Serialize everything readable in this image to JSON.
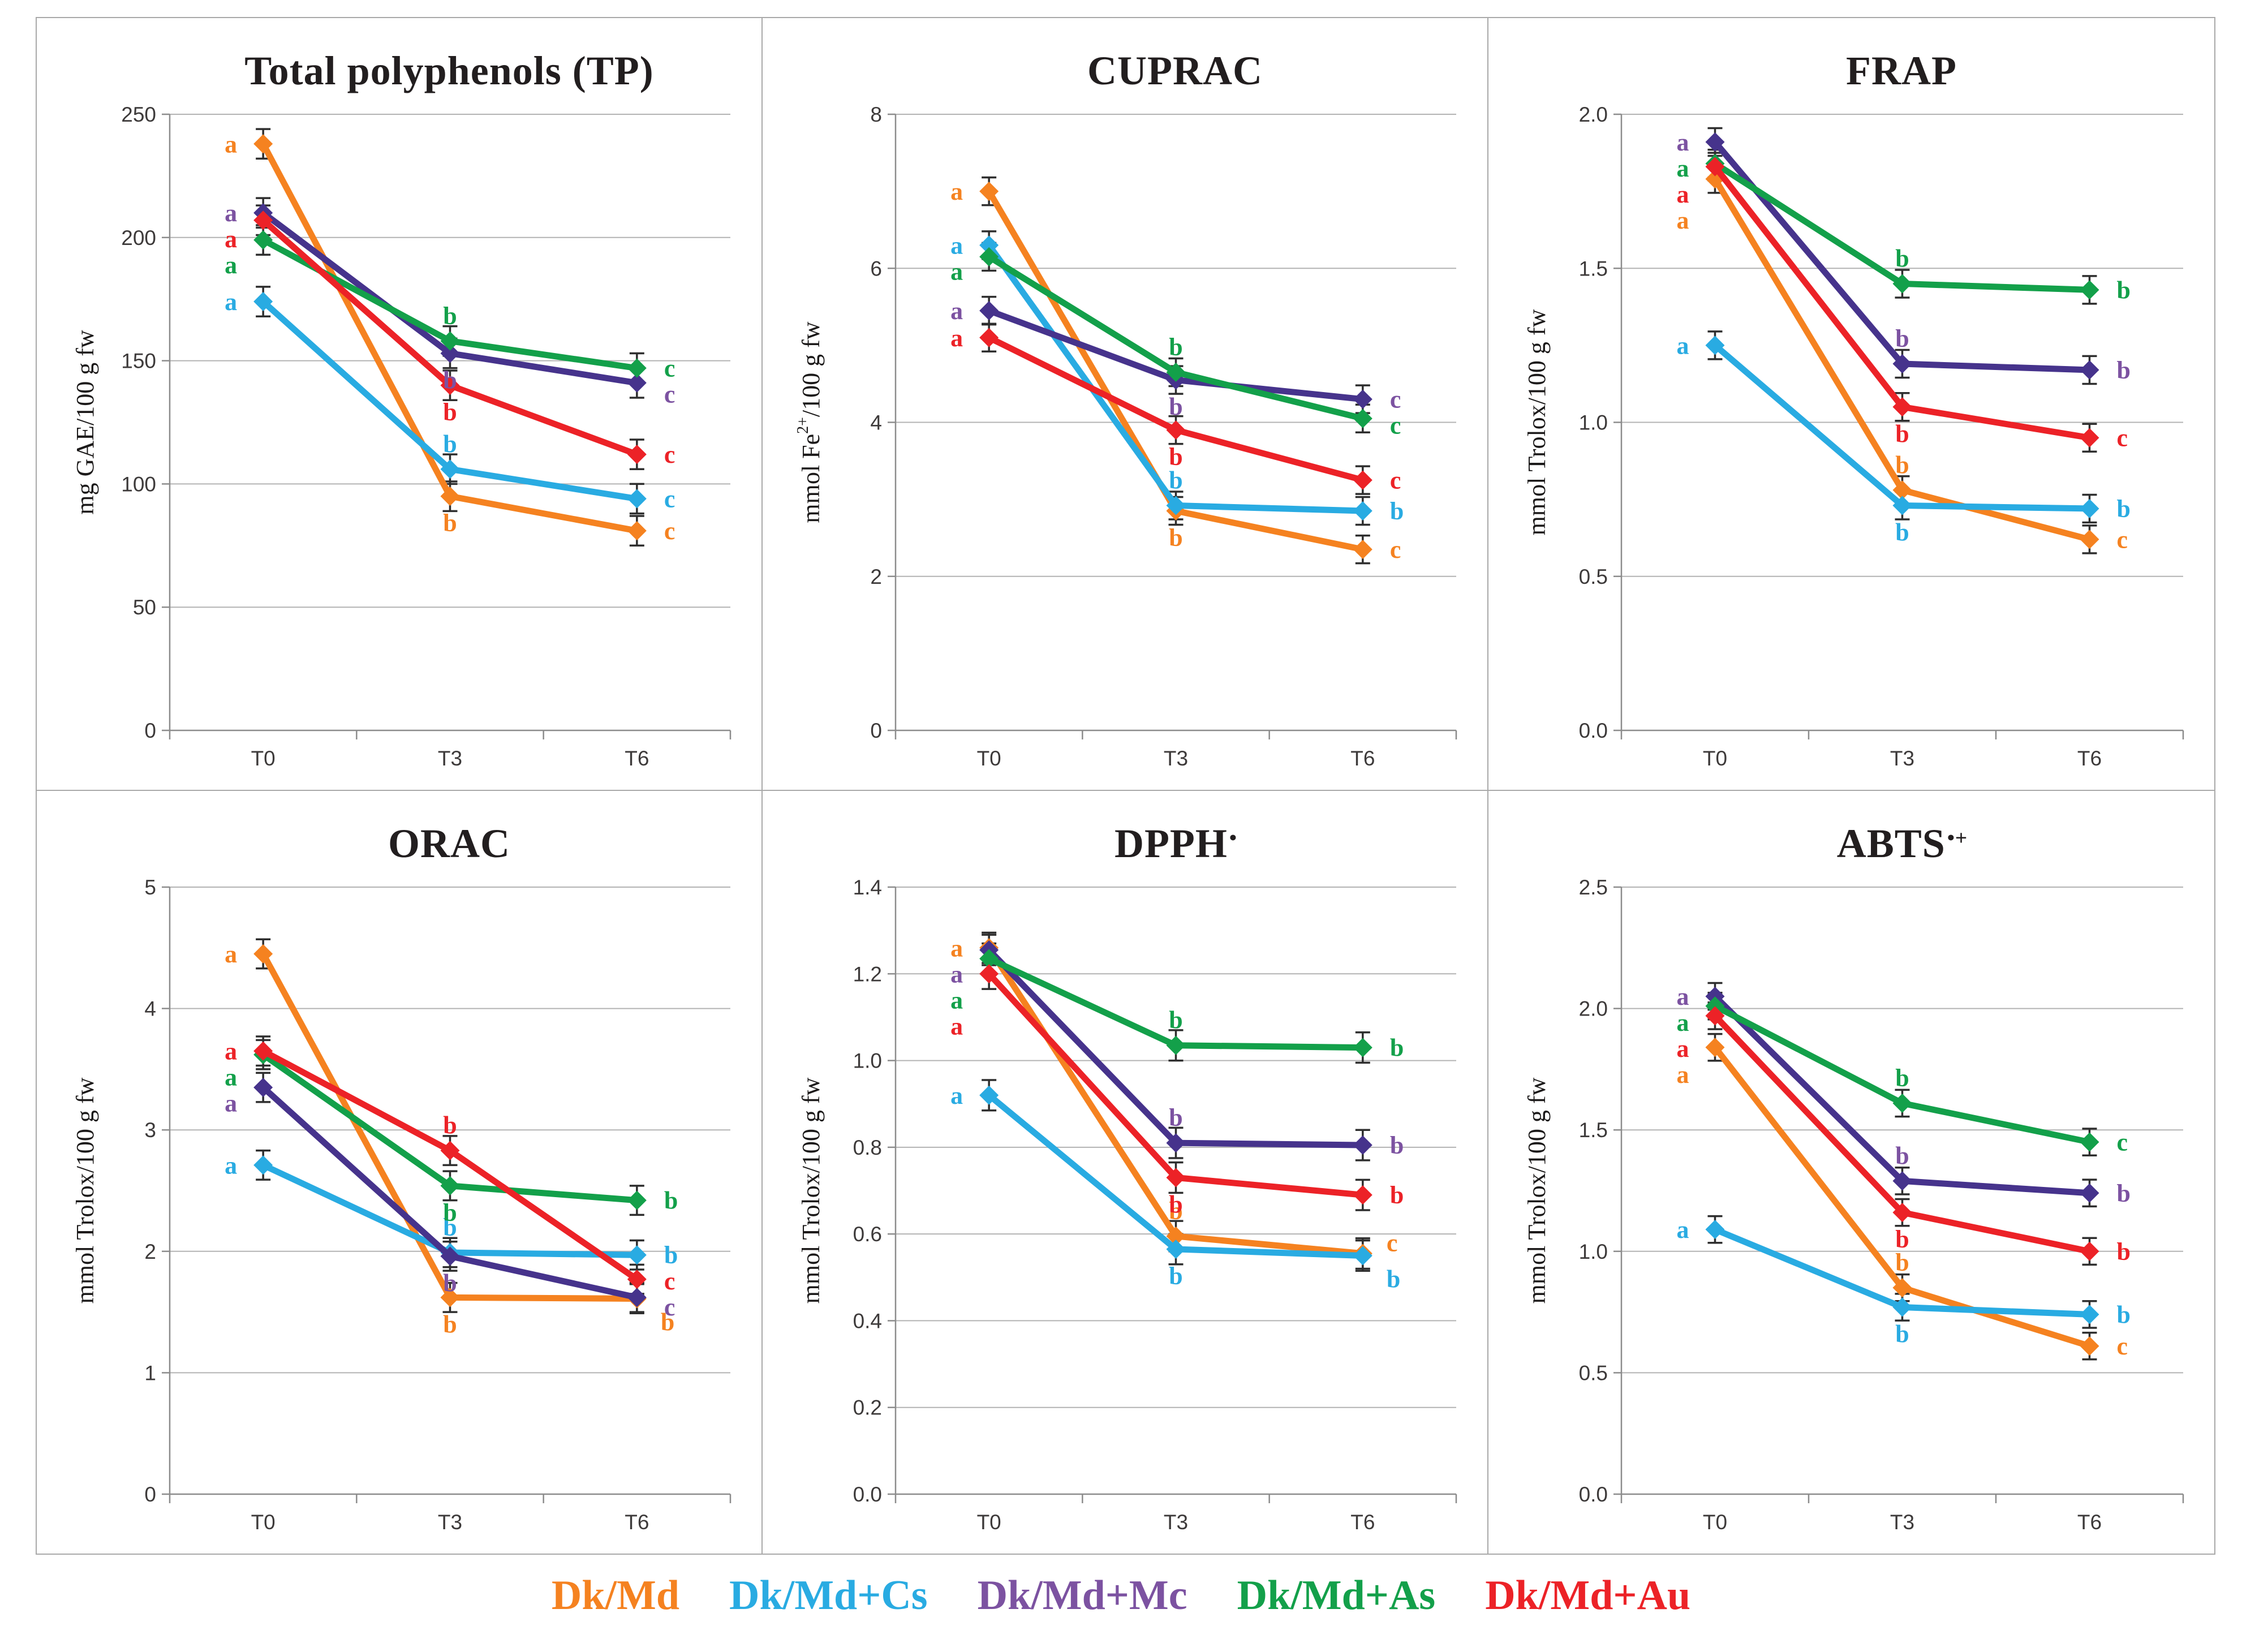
{
  "legend": {
    "items": [
      {
        "label": "Dk/Md",
        "color": "#F58220"
      },
      {
        "label": "Dk/Md+Cs",
        "color": "#29ABE2"
      },
      {
        "label": "Dk/Md+Mc",
        "color": "#7C52A1"
      },
      {
        "label": "Dk/Md+As",
        "color": "#13A04A"
      },
      {
        "label": "Dk/Md+Au",
        "color": "#EC2227"
      }
    ]
  },
  "chart_data": [
    {
      "type": "line",
      "title": "Total polyphenols (TP)",
      "title_sup": "",
      "ylabel_parts": [
        {
          "t": "mg GAE/100 g fw"
        }
      ],
      "categories": [
        "T0",
        "T3",
        "T6"
      ],
      "ylim": [
        0,
        250
      ],
      "yticks": [
        "0",
        "50",
        "100",
        "150",
        "200",
        "250"
      ],
      "grid": "horizontal",
      "legend_position": "bottom-shared",
      "error_bar": 6,
      "series": [
        {
          "name": "Dk/Md",
          "color": "#F58220",
          "values": [
            238,
            95,
            81
          ],
          "letters": [
            "a",
            "b",
            "c"
          ],
          "letter_sides": [
            "left",
            "below",
            "right"
          ]
        },
        {
          "name": "Dk/Md+Cs",
          "color": "#29ABE2",
          "values": [
            174,
            106,
            94
          ],
          "letters": [
            "a",
            "b",
            "c"
          ],
          "letter_sides": [
            "left",
            "above",
            "right"
          ]
        },
        {
          "name": "Dk/Md+Mc",
          "color": "#46338C",
          "letter_color": "#7C52A1",
          "values": [
            210,
            153,
            141
          ],
          "letters": [
            "a",
            "b",
            "c"
          ],
          "letter_sides": [
            "left",
            "below",
            "right"
          ]
        },
        {
          "name": "Dk/Md+As",
          "color": "#13A04A",
          "values": [
            199,
            158,
            147
          ],
          "letters": [
            "a",
            "b",
            "c"
          ],
          "letter_sides": [
            "left",
            "above",
            "right"
          ]
        },
        {
          "name": "Dk/Md+Au",
          "color": "#EC2227",
          "values": [
            207,
            140,
            112
          ],
          "letters": [
            "a",
            "b",
            "c"
          ],
          "letter_sides": [
            "left",
            "below",
            "right"
          ]
        }
      ]
    },
    {
      "type": "line",
      "title": "CUPRAC",
      "title_sup": "",
      "ylabel_parts": [
        {
          "t": "mmol Fe"
        },
        {
          "t": "2+",
          "sup": true
        },
        {
          "t": "/100 g fw"
        }
      ],
      "categories": [
        "T0",
        "T3",
        "T6"
      ],
      "ylim": [
        0,
        8
      ],
      "yticks": [
        "0",
        "2",
        "4",
        "6",
        "8"
      ],
      "grid": "horizontal",
      "error_bar": 0.18,
      "series": [
        {
          "name": "Dk/Md",
          "color": "#F58220",
          "values": [
            7.0,
            2.85,
            2.35
          ],
          "letters": [
            "a",
            "b",
            "c"
          ],
          "letter_sides": [
            "left",
            "below",
            "right"
          ]
        },
        {
          "name": "Dk/Md+Cs",
          "color": "#29ABE2",
          "values": [
            6.3,
            2.92,
            2.85
          ],
          "letters": [
            "a",
            "b",
            "b"
          ],
          "letter_sides": [
            "left",
            "above",
            "right"
          ]
        },
        {
          "name": "Dk/Md+Mc",
          "color": "#46338C",
          "letter_color": "#7C52A1",
          "values": [
            5.45,
            4.55,
            4.3
          ],
          "letters": [
            "a",
            "b",
            "c"
          ],
          "letter_sides": [
            "left",
            "below",
            "right"
          ]
        },
        {
          "name": "Dk/Md+As",
          "color": "#13A04A",
          "values": [
            6.15,
            4.65,
            4.05
          ],
          "letters": [
            "a",
            "b",
            "c"
          ],
          "letter_sides": [
            "left",
            "above",
            "right"
          ]
        },
        {
          "name": "Dk/Md+Au",
          "color": "#EC2227",
          "values": [
            5.1,
            3.9,
            3.25
          ],
          "letters": [
            "a",
            "b",
            "c"
          ],
          "letter_sides": [
            "left",
            "below",
            "right"
          ]
        }
      ]
    },
    {
      "type": "line",
      "title": "FRAP",
      "title_sup": "",
      "ylabel_parts": [
        {
          "t": "mmol Trolox/100 g fw"
        }
      ],
      "categories": [
        "T0",
        "T3",
        "T6"
      ],
      "ylim": [
        0,
        2.0
      ],
      "yticks": [
        "0.0",
        "0.5",
        "1.0",
        "1.5",
        "2.0"
      ],
      "grid": "horizontal",
      "error_bar": 0.045,
      "series": [
        {
          "name": "Dk/Md",
          "color": "#F58220",
          "values": [
            1.79,
            0.78,
            0.62
          ],
          "letters": [
            "a",
            "b",
            "c"
          ],
          "letter_sides": [
            "left",
            "above",
            "right"
          ]
        },
        {
          "name": "Dk/Md+Cs",
          "color": "#29ABE2",
          "values": [
            1.25,
            0.73,
            0.72
          ],
          "letters": [
            "a",
            "b",
            "b"
          ],
          "letter_sides": [
            "left",
            "below",
            "right"
          ]
        },
        {
          "name": "Dk/Md+Mc",
          "color": "#46338C",
          "letter_color": "#7C52A1",
          "values": [
            1.91,
            1.19,
            1.17
          ],
          "letters": [
            "a",
            "b",
            "b"
          ],
          "letter_sides": [
            "left",
            "above",
            "right"
          ]
        },
        {
          "name": "Dk/Md+As",
          "color": "#13A04A",
          "values": [
            1.84,
            1.45,
            1.43
          ],
          "letters": [
            "a",
            "b",
            "b"
          ],
          "letter_sides": [
            "left",
            "above",
            "right"
          ]
        },
        {
          "name": "Dk/Md+Au",
          "color": "#EC2227",
          "values": [
            1.83,
            1.05,
            0.95
          ],
          "letters": [
            "a",
            "b",
            "c"
          ],
          "letter_sides": [
            "left",
            "below",
            "right"
          ]
        }
      ]
    },
    {
      "type": "line",
      "title": "ORAC",
      "title_sup": "",
      "ylabel_parts": [
        {
          "t": "mmol Trolox/100 g fw"
        }
      ],
      "categories": [
        "T0",
        "T3",
        "T6"
      ],
      "ylim": [
        0,
        5
      ],
      "yticks": [
        "0",
        "1",
        "2",
        "3",
        "4",
        "5"
      ],
      "grid": "horizontal",
      "error_bar": 0.12,
      "series": [
        {
          "name": "Dk/Md",
          "color": "#F58220",
          "values": [
            4.45,
            1.62,
            1.61
          ],
          "letters": [
            "a",
            "b",
            "b"
          ],
          "letter_sides": [
            "left",
            "below",
            "belowright"
          ]
        },
        {
          "name": "Dk/Md+Cs",
          "color": "#29ABE2",
          "values": [
            2.71,
            1.99,
            1.97
          ],
          "letters": [
            "a",
            "b",
            "b"
          ],
          "letter_sides": [
            "left",
            "above",
            "right"
          ]
        },
        {
          "name": "Dk/Md+Mc",
          "color": "#46338C",
          "letter_color": "#7C52A1",
          "values": [
            3.35,
            1.96,
            1.62
          ],
          "letters": [
            "a",
            "b",
            "c"
          ],
          "letter_sides": [
            "left",
            "below",
            "right"
          ]
        },
        {
          "name": "Dk/Md+As",
          "color": "#13A04A",
          "values": [
            3.62,
            2.54,
            2.42
          ],
          "letters": [
            "a",
            "b",
            "b"
          ],
          "letter_sides": [
            "left",
            "below",
            "right"
          ]
        },
        {
          "name": "Dk/Md+Au",
          "color": "#EC2227",
          "values": [
            3.65,
            2.83,
            1.77
          ],
          "letters": [
            "a",
            "b",
            "c"
          ],
          "letter_sides": [
            "left",
            "above",
            "right"
          ]
        }
      ]
    },
    {
      "type": "line",
      "title": "DPPH",
      "title_sup": "•",
      "ylabel_parts": [
        {
          "t": "mmol Trolox/100 g fw"
        }
      ],
      "categories": [
        "T0",
        "T3",
        "T6"
      ],
      "ylim": [
        0,
        1.4
      ],
      "yticks": [
        "0.0",
        "0.2",
        "0.4",
        "0.6",
        "0.8",
        "1.0",
        "1.2",
        "1.4"
      ],
      "grid": "horizontal",
      "error_bar": 0.035,
      "series": [
        {
          "name": "Dk/Md",
          "color": "#F58220",
          "values": [
            1.26,
            0.595,
            0.555
          ],
          "letters": [
            "a",
            "b",
            "c"
          ],
          "letter_sides": [
            "left",
            "above",
            "aboveright"
          ]
        },
        {
          "name": "Dk/Md+Cs",
          "color": "#29ABE2",
          "values": [
            0.92,
            0.565,
            0.55
          ],
          "letters": [
            "a",
            "b",
            "b"
          ],
          "letter_sides": [
            "left",
            "below",
            "belowright"
          ]
        },
        {
          "name": "Dk/Md+Mc",
          "color": "#46338C",
          "letter_color": "#7C52A1",
          "values": [
            1.255,
            0.81,
            0.805
          ],
          "letters": [
            "a",
            "b",
            "b"
          ],
          "letter_sides": [
            "left",
            "above",
            "right"
          ]
        },
        {
          "name": "Dk/Md+As",
          "color": "#13A04A",
          "values": [
            1.235,
            1.035,
            1.03
          ],
          "letters": [
            "a",
            "b",
            "b"
          ],
          "letter_sides": [
            "left",
            "above",
            "right"
          ]
        },
        {
          "name": "Dk/Md+Au",
          "color": "#EC2227",
          "values": [
            1.2,
            0.73,
            0.69
          ],
          "letters": [
            "a",
            "b",
            "b"
          ],
          "letter_sides": [
            "left",
            "below",
            "right"
          ]
        }
      ]
    },
    {
      "type": "line",
      "title": "ABTS",
      "title_sup": "•+",
      "ylabel_parts": [
        {
          "t": "mmol Trolox/100 g fw"
        }
      ],
      "categories": [
        "T0",
        "T3",
        "T6"
      ],
      "ylim": [
        0,
        2.5
      ],
      "yticks": [
        "0.0",
        "0.5",
        "1.0",
        "1.5",
        "2.0",
        "2.5"
      ],
      "grid": "horizontal",
      "error_bar": 0.055,
      "series": [
        {
          "name": "Dk/Md",
          "color": "#F58220",
          "values": [
            1.84,
            0.85,
            0.61
          ],
          "letters": [
            "a",
            "b",
            "c"
          ],
          "letter_sides": [
            "left",
            "above",
            "right"
          ]
        },
        {
          "name": "Dk/Md+Cs",
          "color": "#29ABE2",
          "values": [
            1.09,
            0.77,
            0.74
          ],
          "letters": [
            "a",
            "b",
            "b"
          ],
          "letter_sides": [
            "left",
            "below",
            "right"
          ]
        },
        {
          "name": "Dk/Md+Mc",
          "color": "#46338C",
          "letter_color": "#7C52A1",
          "values": [
            2.05,
            1.29,
            1.24
          ],
          "letters": [
            "a",
            "b",
            "b"
          ],
          "letter_sides": [
            "left",
            "above",
            "right"
          ]
        },
        {
          "name": "Dk/Md+As",
          "color": "#13A04A",
          "values": [
            2.01,
            1.61,
            1.45
          ],
          "letters": [
            "a",
            "b",
            "c"
          ],
          "letter_sides": [
            "left",
            "above",
            "right"
          ]
        },
        {
          "name": "Dk/Md+Au",
          "color": "#EC2227",
          "values": [
            1.97,
            1.16,
            1.0
          ],
          "letters": [
            "a",
            "b",
            "b"
          ],
          "letter_sides": [
            "left",
            "below",
            "right"
          ]
        }
      ]
    }
  ]
}
